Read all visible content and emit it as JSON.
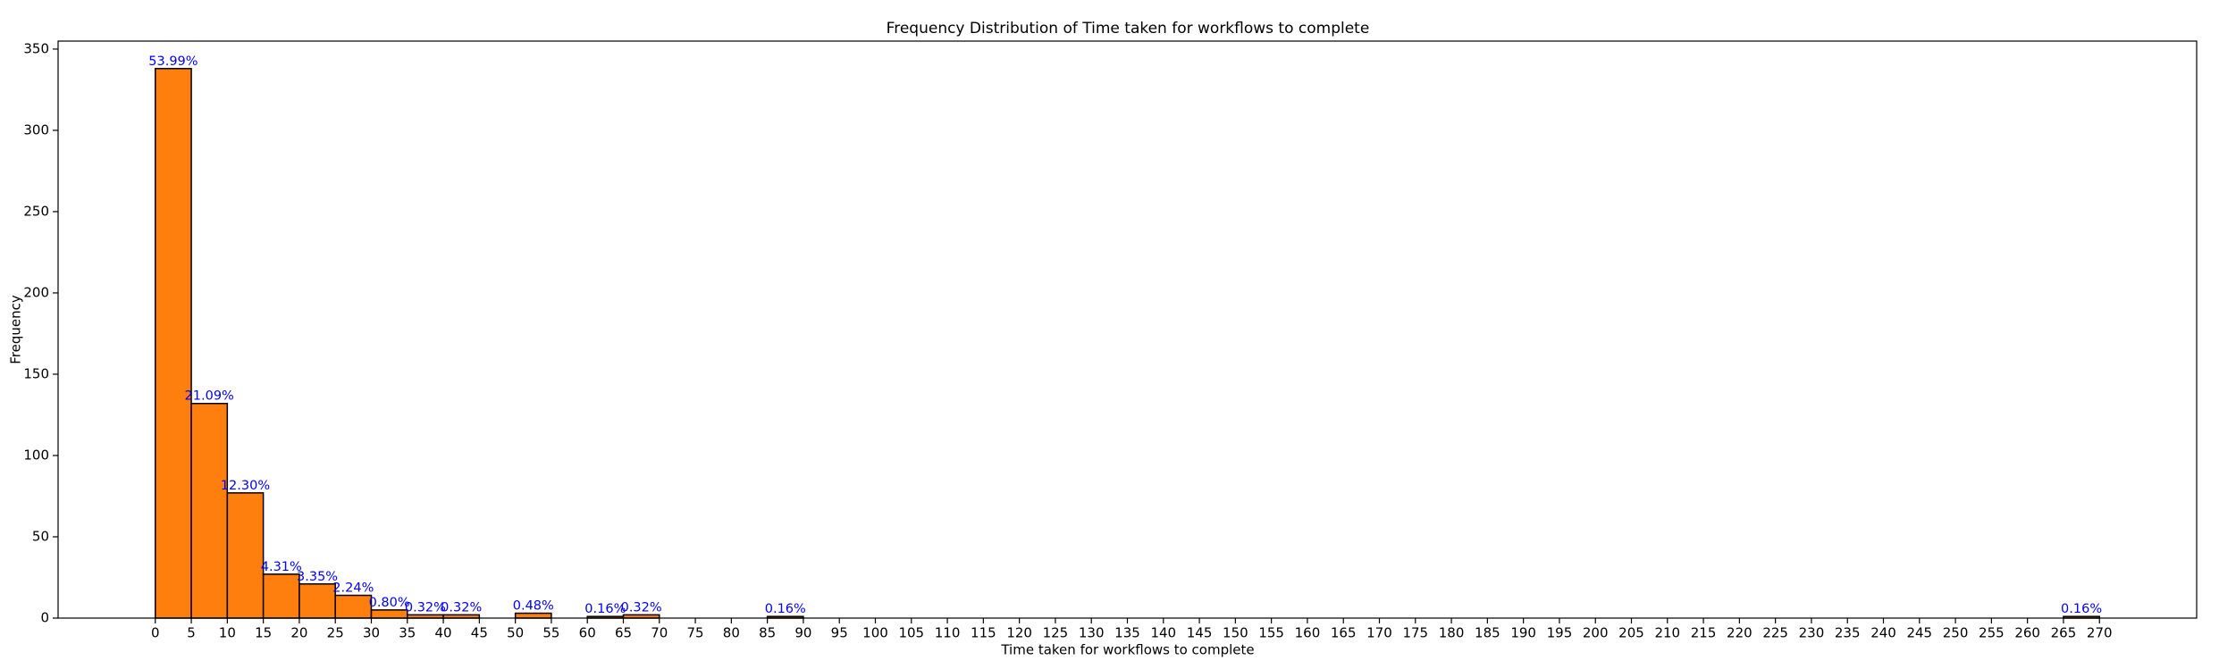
{
  "chart_data": {
    "type": "histogram",
    "title": "Frequency Distribution of Time taken for workflows to complete",
    "x_label": "Time taken for workflows to complete",
    "y_label": "Frequency",
    "bins": [
      0,
      5,
      10,
      15,
      20,
      25,
      30,
      35,
      40,
      45,
      50,
      55,
      60,
      65,
      70,
      75,
      80,
      85,
      90,
      95,
      100,
      105,
      110,
      115,
      120,
      125,
      130,
      135,
      140,
      145,
      150,
      155,
      160,
      165,
      170,
      175,
      180,
      185,
      190,
      195,
      200,
      205,
      210,
      215,
      220,
      225,
      230,
      235,
      240,
      245,
      250,
      255,
      260,
      265,
      270
    ],
    "values": [
      338,
      132,
      77,
      27,
      21,
      14,
      5,
      2,
      2,
      0,
      3,
      0,
      1,
      2,
      0,
      0,
      0,
      1,
      0,
      0,
      0,
      0,
      0,
      0,
      0,
      0,
      0,
      0,
      0,
      0,
      0,
      0,
      0,
      0,
      0,
      0,
      0,
      0,
      0,
      0,
      0,
      0,
      0,
      0,
      0,
      0,
      0,
      0,
      0,
      0,
      0,
      0,
      0,
      1
    ],
    "value_labels": [
      "53.99%",
      "21.09%",
      "12.30%",
      "4.31%",
      "3.35%",
      "2.24%",
      "0.80%",
      "0.32%",
      "0.32%",
      null,
      "0.48%",
      null,
      "0.16%",
      "0.32%",
      null,
      null,
      null,
      "0.16%",
      null,
      null,
      null,
      null,
      null,
      null,
      null,
      null,
      null,
      null,
      null,
      null,
      null,
      null,
      null,
      null,
      null,
      null,
      null,
      null,
      null,
      null,
      null,
      null,
      null,
      null,
      null,
      null,
      null,
      null,
      null,
      null,
      null,
      null,
      null,
      "0.16%"
    ],
    "color": "#ff7f0e",
    "edgecolor": "#000000",
    "value_label_color": "#0000ff",
    "xlim": [
      -13.5,
      283.5
    ],
    "ylim": [
      0,
      354.9
    ],
    "xticks": [
      0,
      5,
      10,
      15,
      20,
      25,
      30,
      35,
      40,
      45,
      50,
      55,
      60,
      65,
      70,
      75,
      80,
      85,
      90,
      95,
      100,
      105,
      110,
      115,
      120,
      125,
      130,
      135,
      140,
      145,
      150,
      155,
      160,
      165,
      170,
      175,
      180,
      185,
      190,
      195,
      200,
      205,
      210,
      215,
      220,
      225,
      230,
      235,
      240,
      245,
      250,
      255,
      260,
      265,
      270
    ],
    "yticks": [
      0,
      50,
      100,
      150,
      200,
      250,
      300,
      350
    ],
    "grid": false
  }
}
